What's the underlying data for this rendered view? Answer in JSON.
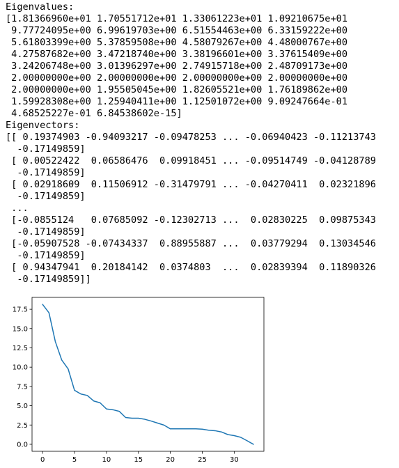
{
  "output": {
    "lines": [
      "Eigenvalues:",
      "[1.81366960e+01 1.70551712e+01 1.33061223e+01 1.09210675e+01",
      " 9.77724095e+00 6.99619703e+00 6.51554463e+00 6.33159222e+00",
      " 5.61803399e+00 5.37859508e+00 4.58079267e+00 4.48000767e+00",
      " 4.27587682e+00 3.47218740e+00 3.38196601e+00 3.37615409e+00",
      " 3.24206748e+00 3.01396297e+00 2.74915718e+00 2.48709173e+00",
      " 2.00000000e+00 2.00000000e+00 2.00000000e+00 2.00000000e+00",
      " 2.00000000e+00 1.95505045e+00 1.82605521e+00 1.76189862e+00",
      " 1.59928308e+00 1.25940411e+00 1.12501072e+00 9.09247664e-01",
      " 4.68525227e-01 6.84538602e-15]",
      "Eigenvectors:",
      "[[ 0.19374903 -0.94093217 -0.09478253 ... -0.06940423 -0.11213743",
      "  -0.17149859]",
      " [ 0.00522422  0.06586476  0.09918451 ... -0.09514749 -0.04128789",
      "  -0.17149859]",
      " [ 0.02918609  0.11506912 -0.31479791 ... -0.04270411  0.02321896",
      "  -0.17149859]",
      " ...",
      " [-0.0855124   0.07685092 -0.12302713 ...  0.02830225  0.09875343",
      "  -0.17149859]",
      " [-0.05907528 -0.07434337  0.88955887 ...  0.03779294  0.13034546",
      "  -0.17149859]",
      " [ 0.94347941  0.20184142  0.0374803  ...  0.02839394  0.11890326",
      "  -0.17149859]]"
    ]
  },
  "chart_data": {
    "type": "line",
    "x": [
      0,
      1,
      2,
      3,
      4,
      5,
      6,
      7,
      8,
      9,
      10,
      11,
      12,
      13,
      14,
      15,
      16,
      17,
      18,
      19,
      20,
      21,
      22,
      23,
      24,
      25,
      26,
      27,
      28,
      29,
      30,
      31,
      32,
      33
    ],
    "series": [
      {
        "values": [
          18.136696,
          17.0551712,
          13.3061223,
          10.9210675,
          9.77724095,
          6.99619703,
          6.51554463,
          6.33159222,
          5.61803399,
          5.37859508,
          4.58079267,
          4.48000767,
          4.27587682,
          3.4721874,
          3.38196601,
          3.37615409,
          3.24206748,
          3.01396297,
          2.74915718,
          2.48709173,
          2.0,
          2.0,
          2.0,
          2.0,
          2.0,
          1.95505045,
          1.82605521,
          1.76189862,
          1.59928308,
          1.25940411,
          1.12501072,
          0.909247664,
          0.468525227,
          0.0
        ],
        "color": "#1f77b4"
      }
    ],
    "xlim": [
      -1.65,
      34.65
    ],
    "ylim": [
      -0.907,
      19.044
    ],
    "xticks": [
      0,
      5,
      10,
      15,
      20,
      25,
      30
    ],
    "xtick_labels": [
      "0",
      "5",
      "10",
      "15",
      "20",
      "25",
      "30"
    ],
    "yticks": [
      0.0,
      2.5,
      5.0,
      7.5,
      10.0,
      12.5,
      15.0,
      17.5
    ],
    "ytick_labels": [
      "0.0",
      "2.5",
      "5.0",
      "7.5",
      "10.0",
      "12.5",
      "15.0",
      "17.5"
    ],
    "grid": false,
    "title": "",
    "xlabel": "",
    "ylabel": ""
  }
}
